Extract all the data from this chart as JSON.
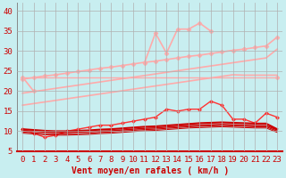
{
  "title": "",
  "xlabel": "Vent moyen/en rafales ( km/h )",
  "background_color": "#c8eef0",
  "grid_color": "#b0b0b0",
  "x_labels": [
    "0",
    "1",
    "2",
    "3",
    "4",
    "5",
    "6",
    "7",
    "8",
    "9",
    "10",
    "11",
    "12",
    "13",
    "14",
    "15",
    "16",
    "17",
    "18",
    "19",
    "20",
    "21",
    "22",
    "23"
  ],
  "x_values": [
    0,
    1,
    2,
    3,
    4,
    5,
    6,
    7,
    8,
    9,
    10,
    11,
    12,
    13,
    14,
    15,
    16,
    17,
    18,
    19,
    20,
    21,
    22,
    23
  ],
  "ylim": [
    5,
    42
  ],
  "yticks": [
    5,
    10,
    15,
    20,
    25,
    30,
    35,
    40
  ],
  "series": [
    {
      "y": [
        23.5,
        20.0,
        null,
        null,
        null,
        null,
        null,
        null,
        null,
        null,
        null,
        27.0,
        34.5,
        29.5,
        35.5,
        35.5,
        37.0,
        35.0,
        null,
        null,
        30.5,
        null,
        null,
        23.5
      ],
      "color": "#ffaaaa",
      "lw": 1.2,
      "marker": "D",
      "ms": 2.5,
      "connect_nans": false
    },
    {
      "y": [
        23.0,
        23.4,
        23.8,
        24.1,
        24.5,
        24.9,
        25.3,
        25.7,
        26.0,
        26.4,
        26.8,
        27.2,
        27.5,
        27.9,
        28.3,
        28.7,
        29.0,
        29.4,
        29.8,
        30.2,
        30.5,
        30.9,
        31.3,
        33.5
      ],
      "color": "#ffaaaa",
      "lw": 1.2,
      "marker": "D",
      "ms": 2.5,
      "connect_nans": true
    },
    {
      "y": [
        19.5,
        19.9,
        20.3,
        20.7,
        21.1,
        21.5,
        21.9,
        22.3,
        22.7,
        23.1,
        23.5,
        23.9,
        24.3,
        24.7,
        25.1,
        25.5,
        25.9,
        26.3,
        26.7,
        27.1,
        27.5,
        27.9,
        28.3,
        30.5
      ],
      "color": "#ffaaaa",
      "lw": 1.2,
      "marker": null,
      "ms": 0,
      "connect_nans": true
    },
    {
      "y": [
        16.5,
        16.9,
        17.3,
        17.7,
        18.1,
        18.5,
        18.9,
        19.3,
        19.7,
        20.1,
        20.5,
        20.9,
        21.3,
        21.7,
        22.1,
        22.5,
        22.9,
        23.3,
        23.7,
        24.1,
        24.0,
        24.0,
        24.0,
        24.0
      ],
      "color": "#ffaaaa",
      "lw": 1.2,
      "marker": null,
      "ms": 0,
      "connect_nans": true
    },
    {
      "y": [
        23.5,
        23.5,
        23.5,
        23.5,
        23.5,
        23.5,
        23.5,
        23.5,
        23.5,
        23.5,
        23.5,
        23.5,
        23.5,
        23.5,
        23.5,
        23.5,
        23.5,
        23.5,
        23.5,
        23.5,
        23.5,
        23.5,
        23.5,
        23.5
      ],
      "color": "#ffaaaa",
      "lw": 1.0,
      "marker": null,
      "ms": 0,
      "connect_nans": true
    },
    {
      "y": [
        10.5,
        9.5,
        8.5,
        9.0,
        10.0,
        10.5,
        11.0,
        11.5,
        11.5,
        12.0,
        12.5,
        13.0,
        13.5,
        15.5,
        15.0,
        15.5,
        15.5,
        17.5,
        16.5,
        13.0,
        13.0,
        12.0,
        14.5,
        13.5
      ],
      "color": "#ff3333",
      "lw": 1.0,
      "marker": "D",
      "ms": 2.0,
      "connect_nans": true
    },
    {
      "y": [
        10.5,
        10.3,
        10.1,
        10.0,
        10.0,
        10.1,
        10.2,
        10.4,
        10.5,
        10.7,
        10.9,
        11.1,
        11.2,
        11.4,
        11.6,
        11.8,
        12.0,
        12.1,
        12.2,
        12.1,
        12.0,
        11.9,
        11.9,
        10.5
      ],
      "color": "#cc0000",
      "lw": 1.5,
      "marker": null,
      "ms": 0,
      "connect_nans": true
    },
    {
      "y": [
        10.2,
        10.0,
        9.8,
        9.7,
        9.7,
        9.8,
        9.9,
        10.0,
        10.1,
        10.3,
        10.5,
        10.7,
        10.8,
        11.0,
        11.2,
        11.4,
        11.5,
        11.6,
        11.7,
        11.6,
        11.5,
        11.4,
        11.4,
        10.3
      ],
      "color": "#cc0000",
      "lw": 1.0,
      "marker": null,
      "ms": 0,
      "connect_nans": true
    },
    {
      "y": [
        9.8,
        9.6,
        9.4,
        9.3,
        9.3,
        9.4,
        9.5,
        9.7,
        9.8,
        10.0,
        10.2,
        10.4,
        10.5,
        10.7,
        10.9,
        11.1,
        11.2,
        11.3,
        11.4,
        11.3,
        11.2,
        11.1,
        11.1,
        10.0
      ],
      "color": "#cc0000",
      "lw": 0.8,
      "marker": null,
      "ms": 0,
      "connect_nans": true
    },
    {
      "y": [
        9.5,
        9.3,
        9.1,
        9.0,
        9.0,
        9.1,
        9.2,
        9.4,
        9.5,
        9.7,
        9.9,
        10.1,
        10.2,
        10.4,
        10.6,
        10.8,
        10.9,
        11.0,
        11.1,
        11.0,
        10.9,
        10.8,
        10.8,
        9.7
      ],
      "color": "#cc0000",
      "lw": 0.7,
      "marker": null,
      "ms": 0,
      "connect_nans": true
    }
  ],
  "arrow_color": "#cc0000",
  "xlabel_color": "#cc0000",
  "xlabel_fontsize": 7,
  "tick_color": "#cc0000",
  "ytick_color": "#cc0000",
  "tick_fontsize": 6.5
}
